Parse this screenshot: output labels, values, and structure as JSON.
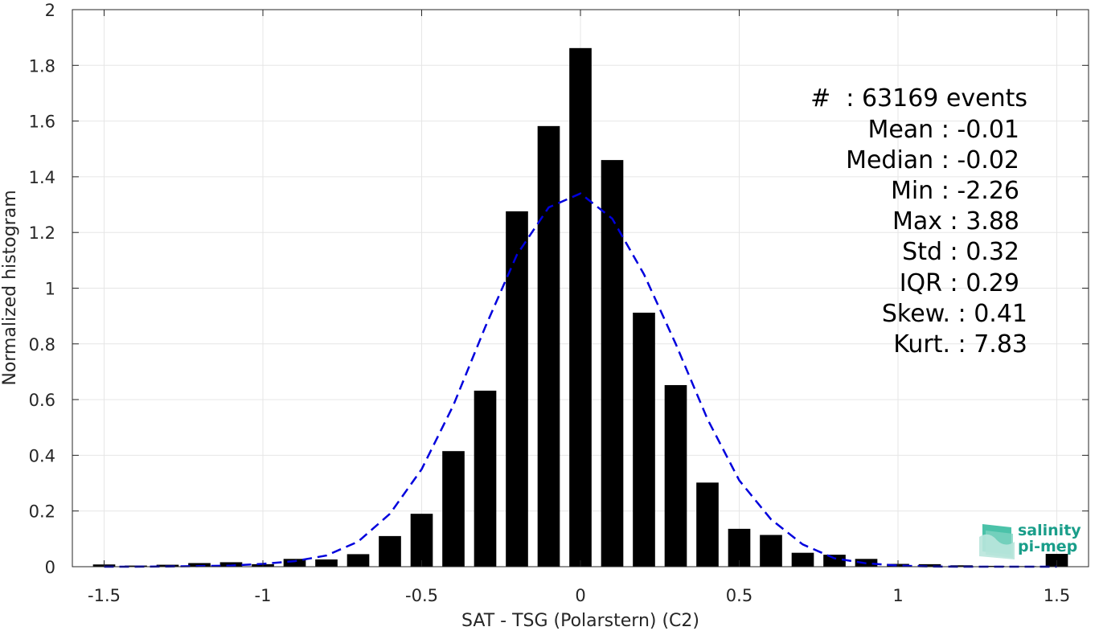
{
  "chart_data": {
    "type": "bar",
    "xlabel": "SAT - TSG (Polarstern) (C2)",
    "ylabel": "Normalized histogram",
    "xlim": [
      -1.6,
      1.6
    ],
    "ylim": [
      0,
      2
    ],
    "xticks": [
      "-1.5",
      "-1",
      "-0.5",
      "0",
      "0.5",
      "1",
      "1.5"
    ],
    "xtick_values": [
      -1.5,
      -1,
      -0.5,
      0,
      0.5,
      1,
      1.5
    ],
    "yticks": [
      "0",
      "0.2",
      "0.4",
      "0.6",
      "0.8",
      "1",
      "1.2",
      "1.4",
      "1.6",
      "1.8",
      "2"
    ],
    "ytick_values": [
      0,
      0.2,
      0.4,
      0.6,
      0.8,
      1,
      1.2,
      1.4,
      1.6,
      1.8,
      2
    ],
    "grid": true,
    "bar_color": "#000000",
    "series": [
      {
        "x": [
          -1.5,
          -1.4,
          -1.3,
          -1.2,
          -1.1,
          -1.0,
          -0.9,
          -0.8,
          -0.7,
          -0.6,
          -0.5,
          -0.4,
          -0.3,
          -0.2,
          -0.1,
          0.0,
          0.1,
          0.2,
          0.3,
          0.4,
          0.5,
          0.6,
          0.7,
          0.8,
          0.9,
          1.0,
          1.1,
          1.2,
          1.3,
          1.4,
          1.5
        ],
        "values": [
          0.008,
          0.004,
          0.007,
          0.013,
          0.016,
          0.009,
          0.028,
          0.026,
          0.045,
          0.11,
          0.19,
          0.415,
          0.632,
          1.276,
          1.582,
          1.862,
          1.46,
          0.912,
          0.652,
          0.302,
          0.136,
          0.114,
          0.05,
          0.043,
          0.028,
          0.01,
          0.009,
          0.005,
          0.003,
          0.002,
          0.046
        ]
      }
    ],
    "fit_curve": {
      "style": "dashed",
      "color": "#0000dd",
      "x": [
        -1.5,
        -1.4,
        -1.3,
        -1.2,
        -1.1,
        -1.0,
        -0.9,
        -0.8,
        -0.7,
        -0.6,
        -0.5,
        -0.4,
        -0.3,
        -0.2,
        -0.1,
        0.0,
        0.1,
        0.2,
        0.3,
        0.4,
        0.5,
        0.6,
        0.7,
        0.8,
        0.9,
        1.0,
        1.1,
        1.2,
        1.3,
        1.4,
        1.5
      ],
      "y": [
        0.0,
        0.0,
        0.001,
        0.002,
        0.004,
        0.01,
        0.02,
        0.04,
        0.09,
        0.19,
        0.35,
        0.58,
        0.86,
        1.12,
        1.29,
        1.34,
        1.25,
        1.05,
        0.8,
        0.53,
        0.31,
        0.17,
        0.08,
        0.03,
        0.012,
        0.004,
        0.001,
        0.0,
        0.0,
        0.0,
        0.0
      ]
    },
    "annotations": [
      "#  : 63169 events",
      "Mean : -0.01",
      "Median : -0.02",
      "Min : -2.26",
      "Max : 3.88",
      "Std : 0.32",
      "IQR : 0.29",
      "Skew. : 0.41",
      "Kurt. : 7.83"
    ]
  },
  "logo": {
    "line1": "salinity",
    "line2": "pi-mep"
  }
}
